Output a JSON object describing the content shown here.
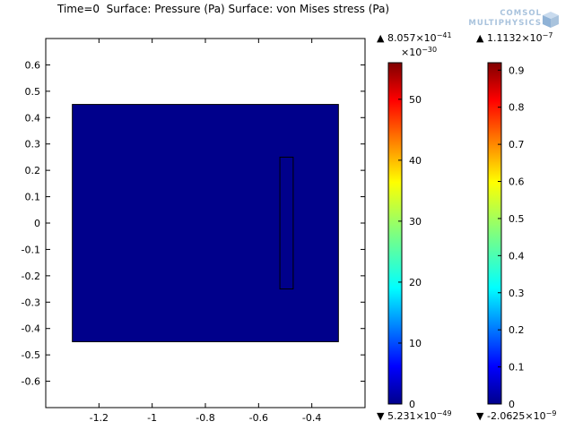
{
  "title": "Time=0  Surface: Pressure (Pa) Surface: von Mises stress (Pa)",
  "logo": {
    "line1": "COMSOL",
    "line2": "MULTIPHYSICS"
  },
  "colors": {
    "domain_fill": "#00008b",
    "frame": "#000000"
  },
  "colorbars": [
    {
      "name": "pressure",
      "max_label": {
        "mantissa": "8.057×10",
        "exponent": "−41"
      },
      "min_label": {
        "mantissa": "5.231×10",
        "exponent": "−49"
      },
      "multiplier": {
        "mantissa": "×10",
        "exponent": "−30"
      },
      "range": [
        0,
        56
      ],
      "ticks": [
        "0",
        "10",
        "20",
        "30",
        "40",
        "50"
      ],
      "tick_values": [
        0,
        10,
        20,
        30,
        40,
        50
      ]
    },
    {
      "name": "von-mises",
      "max_label": {
        "mantissa": "1.1132×10",
        "exponent": "−7"
      },
      "min_label": {
        "mantissa": "-2.0625×10",
        "exponent": "−9"
      },
      "multiplier": null,
      "range": [
        0,
        0.92
      ],
      "ticks": [
        "0",
        "0.1",
        "0.2",
        "0.3",
        "0.4",
        "0.5",
        "0.6",
        "0.7",
        "0.8",
        "0.9"
      ],
      "tick_values": [
        0,
        0.1,
        0.2,
        0.3,
        0.4,
        0.5,
        0.6,
        0.7,
        0.8,
        0.9
      ]
    }
  ],
  "chart_data": {
    "type": "heatmap",
    "title": "Time=0  Surface: Pressure (Pa) Surface: von Mises stress (Pa)",
    "xlim": [
      -1.4,
      -0.2
    ],
    "ylim": [
      -0.7,
      0.7
    ],
    "xticks": [
      -1.2,
      -1,
      -0.8,
      -0.6,
      -0.4
    ],
    "xtick_labels": [
      "-1.2",
      "-1",
      "-0.8",
      "-0.6",
      "-0.4"
    ],
    "yticks": [
      0.6,
      0.5,
      0.4,
      0.3,
      0.2,
      0.1,
      0,
      -0.1,
      -0.2,
      -0.3,
      -0.4,
      -0.5,
      -0.6
    ],
    "ytick_labels": [
      "0.6",
      "0.5",
      "0.4",
      "0.3",
      "0.2",
      "0.1",
      "0",
      "-0.1",
      "-0.2",
      "-0.3",
      "-0.4",
      "-0.5",
      "-0.6"
    ],
    "regions": [
      {
        "name": "fluid-domain",
        "x": [
          -1.3,
          -0.3
        ],
        "y": [
          -0.45,
          0.45
        ],
        "value": 0
      },
      {
        "name": "solid-plate",
        "x": [
          -0.52,
          -0.47
        ],
        "y": [
          -0.25,
          0.25
        ],
        "value": 0
      }
    ],
    "grid": false
  }
}
